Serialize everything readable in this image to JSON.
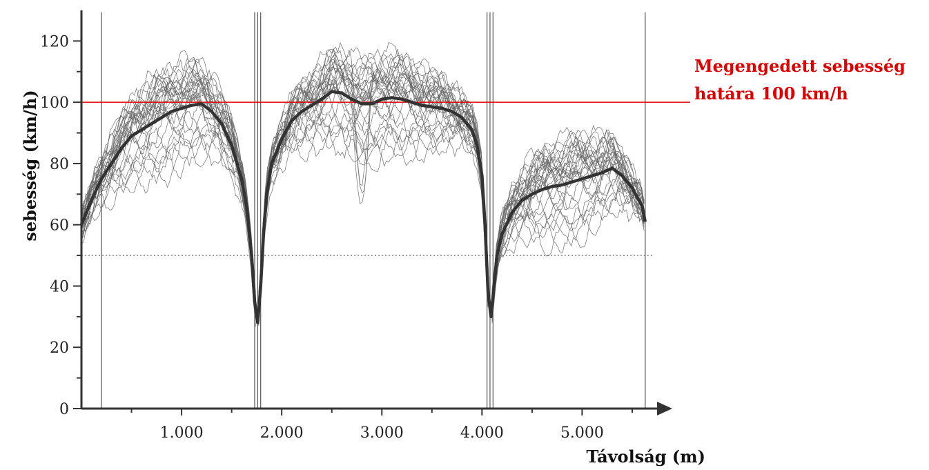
{
  "chart_data": {
    "type": "line",
    "title": "",
    "xlabel": "Távolság (m)",
    "ylabel": "sebesség (km/h)",
    "xlim": [
      0,
      5700
    ],
    "ylim": [
      0,
      130
    ],
    "x_ticks": [
      {
        "value": 1000,
        "label": "1.000"
      },
      {
        "value": 2000,
        "label": "2.000"
      },
      {
        "value": 3000,
        "label": "3.000"
      },
      {
        "value": 4000,
        "label": "4.000"
      },
      {
        "value": 5000,
        "label": "5.000"
      }
    ],
    "y_ticks": [
      {
        "value": 0,
        "label": "0"
      },
      {
        "value": 20,
        "label": "20"
      },
      {
        "value": 40,
        "label": "40"
      },
      {
        "value": 60,
        "label": "60"
      },
      {
        "value": 80,
        "label": "80"
      },
      {
        "value": 100,
        "label": "100"
      },
      {
        "value": 120,
        "label": "120"
      }
    ],
    "reference_line": {
      "y": 100,
      "color": "#e00000"
    },
    "dotted_line": {
      "y": 50
    },
    "vertical_markers": [
      200,
      1730,
      1760,
      1790,
      4050,
      4080,
      4110,
      5630
    ],
    "annotation": {
      "lines": [
        "Megengedett sebesség",
        "határa 100 km/h"
      ],
      "color": "#e00000"
    },
    "mean_series": {
      "x": [
        0,
        100,
        200,
        300,
        400,
        500,
        600,
        700,
        800,
        900,
        1000,
        1100,
        1200,
        1300,
        1400,
        1500,
        1600,
        1650,
        1700,
        1730,
        1760,
        1790,
        1820,
        1850,
        1900,
        2000,
        2100,
        2200,
        2300,
        2400,
        2500,
        2600,
        2700,
        2800,
        2900,
        3000,
        3100,
        3200,
        3300,
        3400,
        3500,
        3600,
        3700,
        3800,
        3900,
        3950,
        4000,
        4030,
        4060,
        4090,
        4120,
        4150,
        4200,
        4300,
        4400,
        4500,
        4600,
        4700,
        4800,
        4900,
        5000,
        5100,
        5200,
        5300,
        5400,
        5500,
        5600,
        5630
      ],
      "y": [
        60,
        68,
        75,
        80,
        85,
        89,
        91,
        93,
        95,
        97,
        98,
        99,
        99.5,
        97,
        93,
        86,
        75,
        66,
        50,
        35,
        28,
        40,
        58,
        70,
        80,
        88,
        94,
        97,
        99,
        101,
        103.5,
        103,
        101,
        99.5,
        99.5,
        101,
        101.5,
        101,
        100,
        99,
        98.5,
        98,
        97,
        95,
        91,
        86,
        76,
        60,
        38,
        30,
        40,
        50,
        57,
        64,
        68,
        70,
        71.5,
        72.5,
        73,
        74,
        75,
        76,
        77,
        78.5,
        76,
        72,
        66,
        61
      ]
    },
    "series_lines": 30,
    "axis_color": "#333333"
  }
}
